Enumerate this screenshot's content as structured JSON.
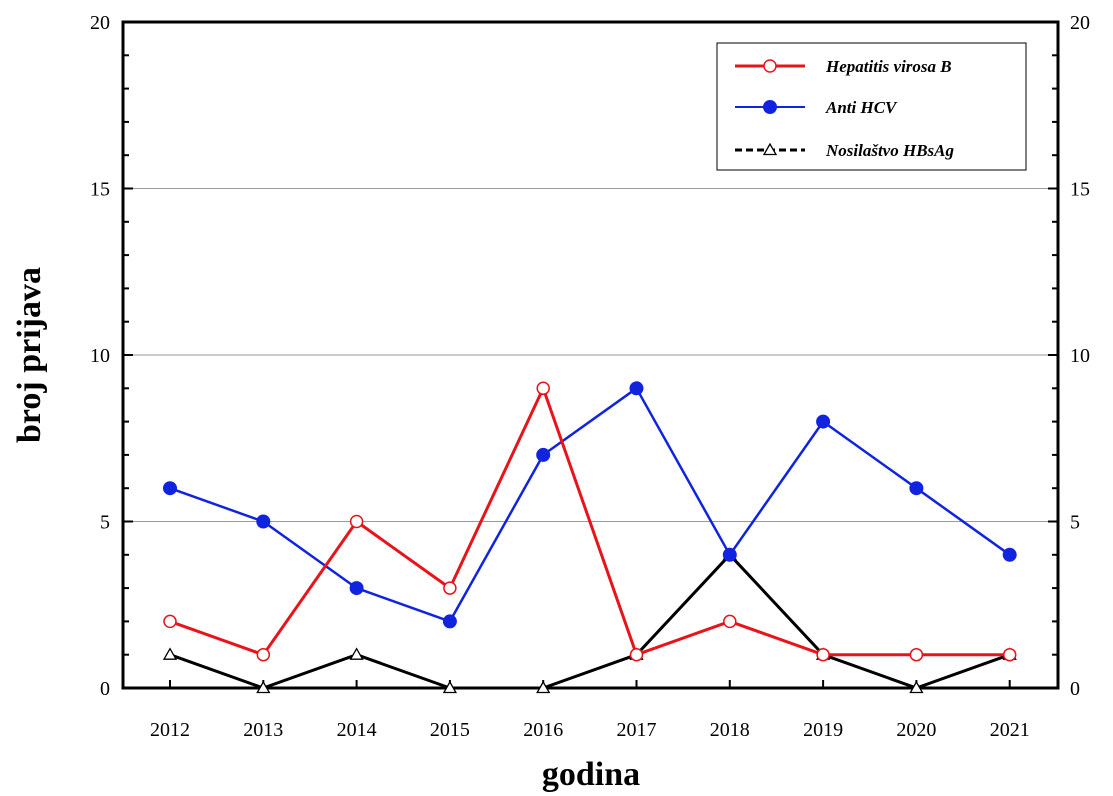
{
  "chart_data": {
    "type": "line",
    "title": "",
    "xlabel": "godina",
    "ylabel": "broj prijava",
    "ylim": [
      0,
      20
    ],
    "yticks": [
      "0",
      "5",
      "10",
      "15",
      "20"
    ],
    "y_right_ticks": [
      "0",
      "5",
      "10",
      "15",
      "20"
    ],
    "grid": "horizontal at 5, 10, 15",
    "legend_position": "top-right",
    "categories": [
      "2012",
      "2013",
      "2014",
      "2015",
      "2016",
      "2017",
      "2018",
      "2019",
      "2020",
      "2021"
    ],
    "series": [
      {
        "name": "Hepatitis virosa B",
        "color": "#e8141b",
        "marker": "open-circle",
        "line": "solid-thick",
        "values": [
          2,
          1,
          5,
          3,
          9,
          1,
          2,
          1,
          1,
          1
        ]
      },
      {
        "name": "Anti HCV",
        "color": "#1024e0",
        "marker": "filled-octagon",
        "line": "solid",
        "values": [
          6,
          5,
          3,
          2,
          7,
          9,
          4,
          8,
          6,
          4
        ]
      },
      {
        "name": "Nosilaštvo HBsAg",
        "color": "#000000",
        "marker": "open-triangle",
        "line": "solid (legend shows dashed)",
        "values": [
          1,
          0,
          1,
          0,
          0,
          1,
          4,
          1,
          0,
          1
        ]
      }
    ]
  }
}
